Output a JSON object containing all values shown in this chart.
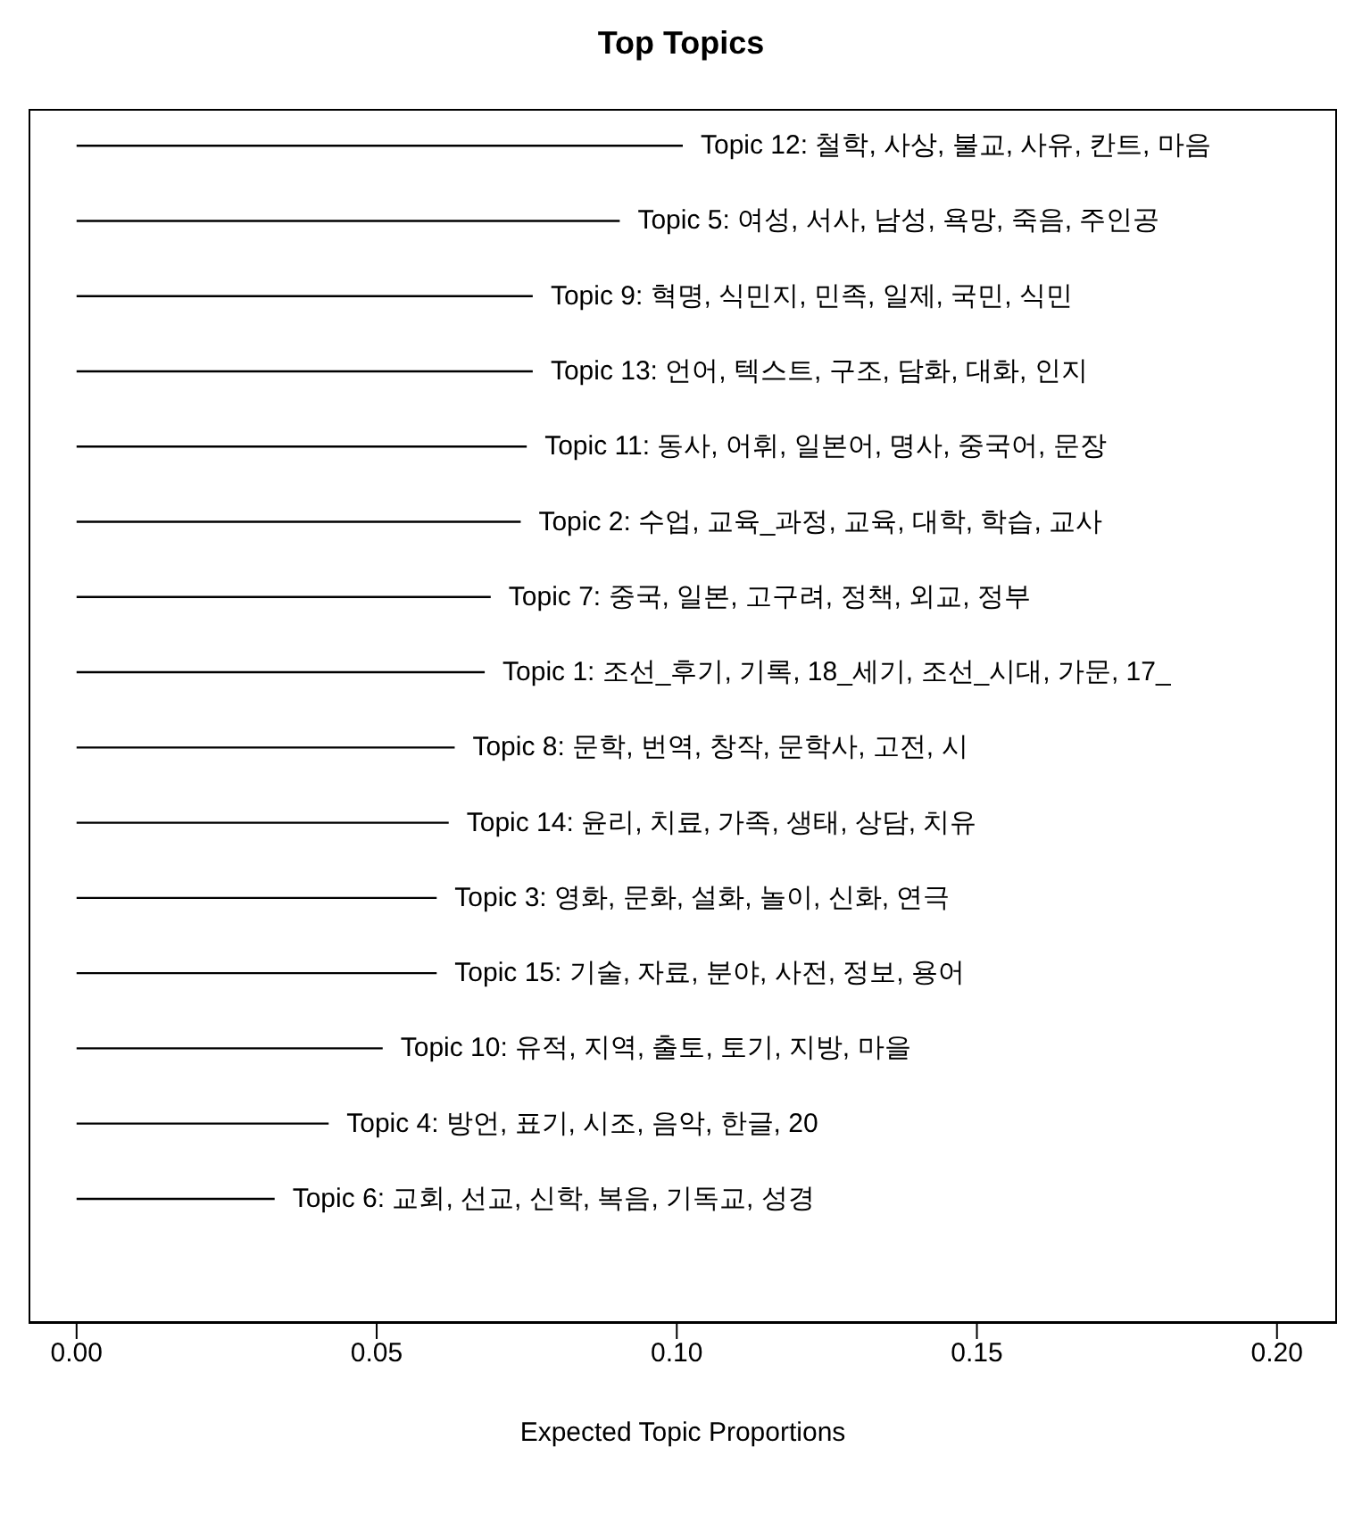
{
  "chart_data": {
    "type": "bar",
    "orientation": "horizontal",
    "title": "Top Topics",
    "xlabel": "Expected Topic Proportions",
    "categories": [
      "Topic 12: 철학, 사상, 불교, 사유, 칸트, 마음",
      "Topic 5: 여성, 서사, 남성, 욕망, 죽음, 주인공",
      "Topic 9: 혁명, 식민지, 민족, 일제, 국민, 식민",
      "Topic 13: 언어, 텍스트, 구조, 담화, 대화, 인지",
      "Topic 11: 동사, 어휘, 일본어, 명사, 중국어, 문장",
      "Topic 2: 수업, 교육_과정, 교육, 대학, 학습, 교사",
      "Topic 7: 중국, 일본, 고구려, 정책, 외교, 정부",
      "Topic 1: 조선_후기, 기록, 18_세기, 조선_시대, 가문, 17_",
      "Topic 8: 문학, 번역, 창작, 문학사, 고전, 시",
      "Topic 14: 윤리, 치료, 가족, 생태, 상담, 치유",
      "Topic 3: 영화, 문화, 설화, 놀이, 신화, 연극",
      "Topic 15: 기술, 자료, 분야, 사전, 정보, 용어",
      "Topic 10: 유적, 지역, 출토, 토기, 지방, 마을",
      "Topic 4: 방언, 표기, 시조, 음악, 한글, 20",
      "Topic 6: 교회, 선교, 신학, 복음, 기독교, 성경"
    ],
    "values": [
      0.101,
      0.0905,
      0.076,
      0.076,
      0.075,
      0.074,
      0.069,
      0.068,
      0.063,
      0.062,
      0.06,
      0.06,
      0.051,
      0.042,
      0.033
    ],
    "color": "#000000",
    "xlim": [
      -0.008,
      0.21
    ],
    "xticks": [
      {
        "value": 0,
        "label": "0.00"
      },
      {
        "value": 0.05,
        "label": "0.05"
      },
      {
        "value": 0.1,
        "label": "0.10"
      },
      {
        "value": 0.15,
        "label": "0.15"
      },
      {
        "value": 0.2,
        "label": "0.20"
      }
    ],
    "tick_labels": "x",
    "grid": false,
    "legend": false
  }
}
